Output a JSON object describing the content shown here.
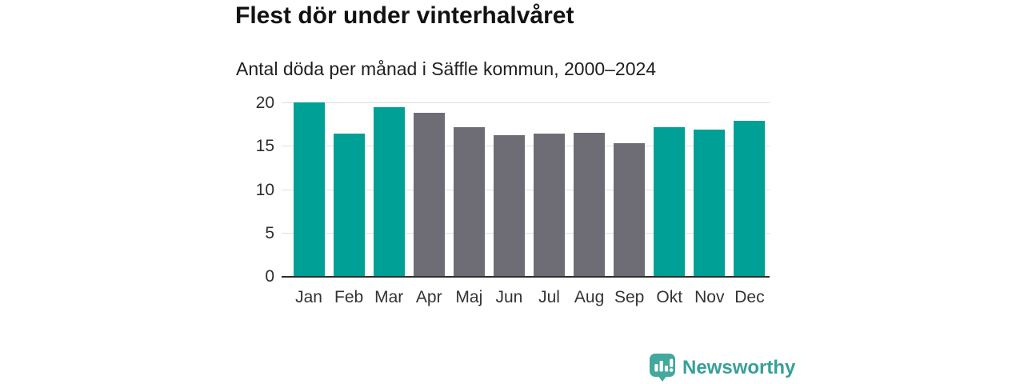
{
  "title": "Flest dör under vinterhalvåret",
  "subtitle": "Antal döda per månad i Säffle kommun, 2000–2024",
  "footer": {
    "brand": "Newsworthy"
  },
  "colors": {
    "teal": "#00a096",
    "gray": "#6e6d75",
    "logo": "#43a89d",
    "brand_text": "#37a095",
    "grid": "#e0e0e0",
    "axis": "#2e2e2e"
  },
  "chart_data": {
    "type": "bar",
    "title": "Flest dör under vinterhalvåret",
    "subtitle": "Antal döda per månad i Säffle kommun, 2000–2024",
    "categories": [
      "Jan",
      "Feb",
      "Mar",
      "Apr",
      "Maj",
      "Jun",
      "Jul",
      "Aug",
      "Sep",
      "Okt",
      "Nov",
      "Dec"
    ],
    "values": [
      20.1,
      16.5,
      19.5,
      18.9,
      17.2,
      16.3,
      16.5,
      16.6,
      15.4,
      17.2,
      17.0,
      18.0
    ],
    "bar_colors": [
      "teal",
      "teal",
      "teal",
      "gray",
      "gray",
      "gray",
      "gray",
      "gray",
      "gray",
      "teal",
      "teal",
      "teal"
    ],
    "xlabel": "",
    "ylabel": "",
    "yticks": [
      0,
      5,
      10,
      15,
      20
    ],
    "ylim": [
      0,
      20.5
    ],
    "grid": true,
    "legend": false
  }
}
